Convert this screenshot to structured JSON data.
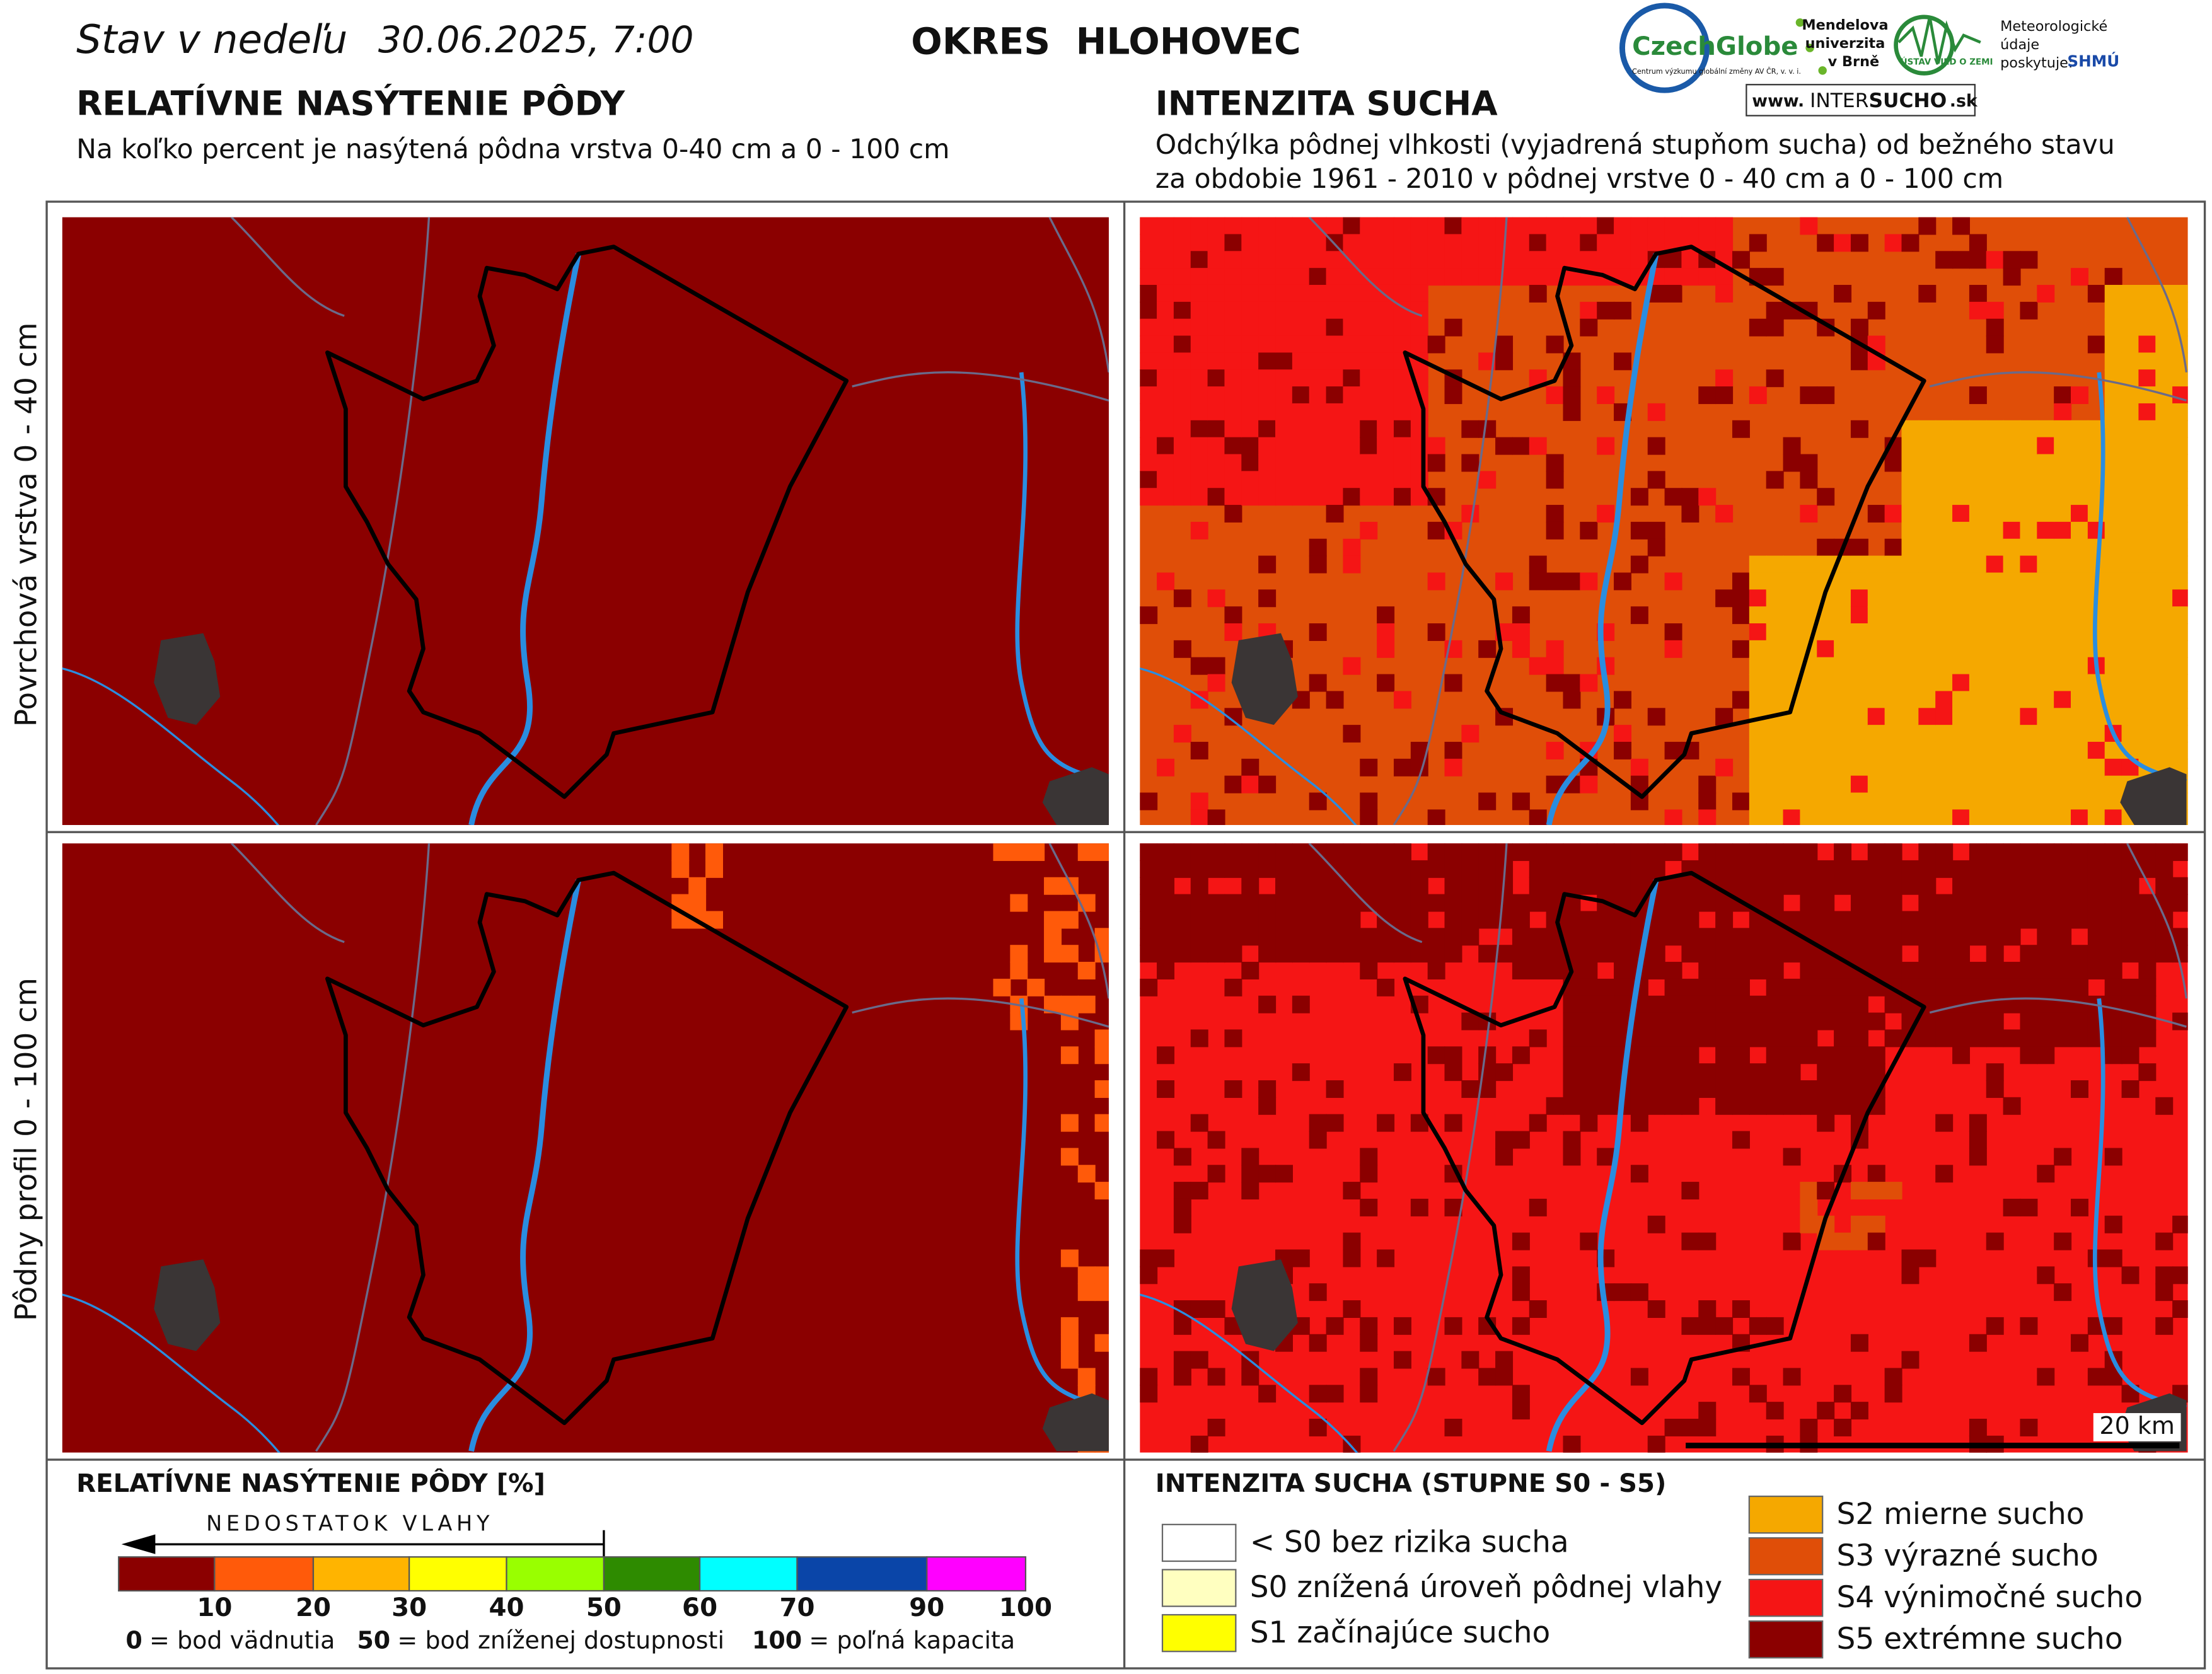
{
  "header": {
    "title_prefix": "Stav v nedeľu",
    "date": "30.06.2025, 7:00",
    "district": "OKRES  HLOHOVEC"
  },
  "logos": {
    "czechglobe": "CzechGlobe",
    "czechglobe_note": "Centrum výzkumu globální změny AV ČR, v. v. i.",
    "mendelu": [
      "Mendelova",
      "univerzita",
      "v Brně"
    ],
    "ustav": "ÚSTAV VIED O ZEMI",
    "meteo": [
      "Meteorologické",
      "údaje",
      "poskytuje:"
    ],
    "shmu": "SHMÚ",
    "web": [
      "www.",
      "INTER",
      "SUCHO",
      ".sk"
    ]
  },
  "left": {
    "title": "RELATÍVNE NASÝTENIE PÔDY",
    "subtitle": "Na koľko percent je nasýtená pôdna vrstva 0-40 cm a 0 - 100 cm"
  },
  "right": {
    "title": "INTENZITA SUCHA",
    "subtitle": [
      "Odchýlka pôdnej vlhkosti (vyjadrená stupňom sucha) od bežného stavu",
      "za obdobie 1961 - 2010 v pôdnej vrstve 0 - 40 cm a 0 - 100 cm"
    ]
  },
  "rows": [
    "Povrchová vrstva 0 - 40 cm",
    "Pôdny profil 0 - 100 cm"
  ],
  "scale_bar": "20 km",
  "legend_left": {
    "title": "RELATÍVNE NASÝTENIE PÔDY [%]",
    "arrow_label": "NEDOSTATOK VLAHY",
    "colors": [
      "#8b0000",
      "#ff5a0a",
      "#ffb400",
      "#ffff00",
      "#99ff00",
      "#2e8b00",
      "#00ffff",
      "#0a45a8",
      "#ff00ff"
    ],
    "ticks": [
      10,
      20,
      30,
      40,
      50,
      60,
      70,
      90,
      100
    ],
    "notes": [
      {
        "value": 0,
        "text": "= bod vädnutia"
      },
      {
        "value": 50,
        "text": "= bod zníženej dostupnosti"
      },
      {
        "value": 100,
        "text": "= poľná kapacita"
      }
    ]
  },
  "legend_right": {
    "title": "INTENZITA SUCHA (STUPNE S0 - S5)",
    "items": [
      {
        "label": "< S0 bez rizika sucha",
        "color": "#ffffff"
      },
      {
        "label": "S0 znížená úroveň pôdnej vlahy",
        "color": "#ffffc0"
      },
      {
        "label": "S1 začínajúce sucho",
        "color": "#ffff00"
      },
      {
        "label": "S2 mierne sucho",
        "color": "#f5a800"
      },
      {
        "label": "S3 výrazné sucho",
        "color": "#e04e08"
      },
      {
        "label": "S4 výnimočné sucho",
        "color": "#f51515"
      },
      {
        "label": "S5 extrémne sucho",
        "color": "#8b0000"
      }
    ]
  }
}
